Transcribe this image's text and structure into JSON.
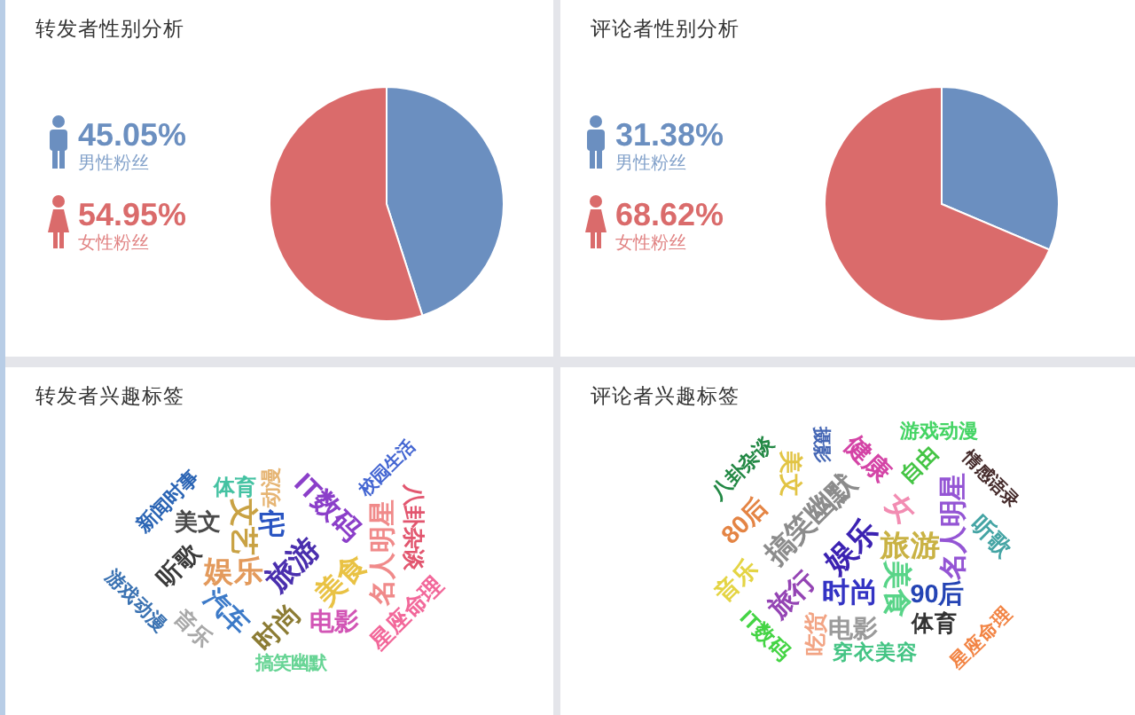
{
  "chart_data": [
    {
      "type": "pie",
      "title": "转发者性别分析",
      "categories": [
        "男性粉丝",
        "女性粉丝"
      ],
      "values": [
        45.05,
        54.95
      ],
      "colors": [
        "#6b8fc0",
        "#da6b6b"
      ],
      "value_labels": [
        "45.05%",
        "54.95%"
      ],
      "legend": "left"
    },
    {
      "type": "pie",
      "title": "评论者性别分析",
      "categories": [
        "男性粉丝",
        "女性粉丝"
      ],
      "values": [
        31.38,
        68.62
      ],
      "colors": [
        "#6b8fc0",
        "#da6b6b"
      ],
      "value_labels": [
        "31.38%",
        "68.62%"
      ],
      "legend": "left"
    },
    {
      "type": "other",
      "title": "转发者兴趣标签",
      "annotations": [
        "旅游",
        "娱乐",
        "美食",
        "文艺",
        "IT数码",
        "宅",
        "名人明星",
        "时尚",
        "汽车",
        "电影",
        "听歌",
        "美文",
        "星座命理",
        "八卦杂谈",
        "音乐",
        "体育",
        "动漫",
        "新闻时事",
        "游戏动漫",
        "搞笑幽默",
        "校园生活"
      ],
      "colors": [
        "#4a2fae",
        "#e39a5c",
        "#e9c244",
        "#c9a244",
        "#8b3fc9",
        "#2a55c2",
        "#f08a8a",
        "#8c7c34",
        "#3c7ac8",
        "#d255b5",
        "#3a3a3a",
        "#4a4a4a",
        "#f2689a",
        "#e2566f",
        "#a8a8a8",
        "#44c2a2",
        "#e6b574",
        "#2a64b4",
        "#3a72b2",
        "#66d494",
        "#4466d2"
      ]
    },
    {
      "type": "other",
      "title": "评论者兴趣标签",
      "annotations": [
        "娱乐",
        "旅游",
        "搞笑幽默",
        "美食",
        "女",
        "时尚",
        "名人明星",
        "旅行",
        "健康",
        "90后",
        "80后",
        "电影",
        "音乐",
        "美文",
        "听歌",
        "体育",
        "吃货",
        "自由",
        "IT数码",
        "穿衣美容",
        "八卦杂谈",
        "游戏动漫",
        "星座命理",
        "摄影",
        "情感语录"
      ],
      "colors": [
        "#3b22b2",
        "#c9b244",
        "#8c8c8c",
        "#58d488",
        "#f28cb2",
        "#3333c4",
        "#9455d4",
        "#9444b4",
        "#d444a6",
        "#2444b4",
        "#e48444",
        "#9a9a9a",
        "#e4d444",
        "#e2c444",
        "#44a4a4",
        "#333333",
        "#f2a484",
        "#44c444",
        "#44d444",
        "#44c484",
        "#228844",
        "#44d464",
        "#f28444",
        "#4466b4",
        "#442a2a"
      ]
    }
  ]
}
